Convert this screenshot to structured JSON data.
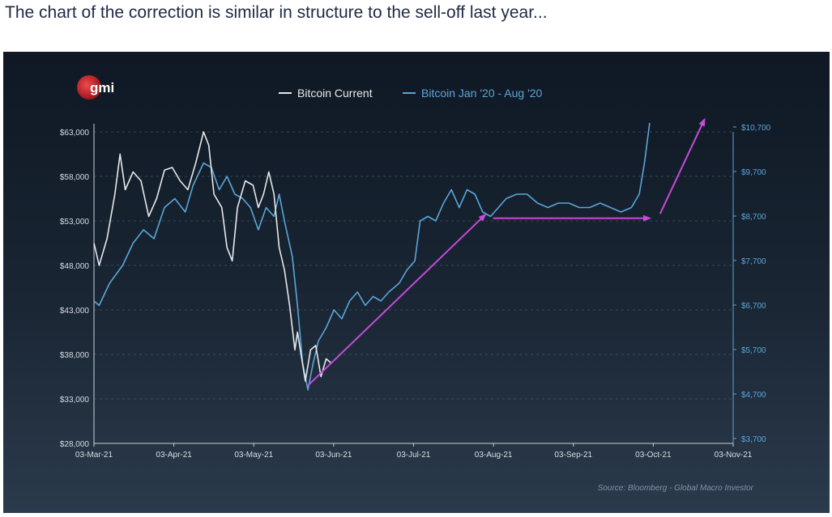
{
  "headline": "The chart of the correction is similar in structure to the sell-off last year...",
  "logo_text": "gmi",
  "source": "Source: Bloomberg - Global Macro Investor",
  "colors": {
    "panel_top": "#0f1824",
    "panel_bottom": "#2b3a4c",
    "current": "#e8e8e8",
    "last_year": "#5aa6d9",
    "arrows": "#c64bd9",
    "logo_red": "#c8252c",
    "axis_text": "#d8dde4"
  },
  "chart_data": {
    "type": "line",
    "title": "",
    "legend_position": "top-center",
    "grid": true,
    "x_axis": {
      "ticks": [
        "03-Mar-21",
        "03-Apr-21",
        "03-May-21",
        "03-Jun-21",
        "03-Jul-21",
        "03-Aug-21",
        "03-Sep-21",
        "03-Oct-21",
        "03-Nov-21"
      ],
      "range": [
        "2021-03-03",
        "2021-11-03"
      ]
    },
    "y_left": {
      "ticks": [
        "$28,000",
        "$33,000",
        "$38,000",
        "$43,000",
        "$48,000",
        "$53,000",
        "$58,000",
        "$63,000"
      ],
      "range": [
        28000,
        63000
      ]
    },
    "y_right": {
      "ticks": [
        "$3,700",
        "$4,700",
        "$5,700",
        "$6,700",
        "$7,700",
        "$8,700",
        "$9,700",
        "$10,700"
      ],
      "range": [
        3700,
        10700
      ]
    },
    "series": [
      {
        "name": "Bitcoin Current",
        "axis": "left",
        "points": [
          [
            "2021-03-03",
            50500
          ],
          [
            "2021-03-05",
            48000
          ],
          [
            "2021-03-08",
            51000
          ],
          [
            "2021-03-11",
            56000
          ],
          [
            "2021-03-13",
            60500
          ],
          [
            "2021-03-15",
            56500
          ],
          [
            "2021-03-18",
            58500
          ],
          [
            "2021-03-21",
            57500
          ],
          [
            "2021-03-24",
            53500
          ],
          [
            "2021-03-27",
            55500
          ],
          [
            "2021-03-30",
            58700
          ],
          [
            "2021-04-02",
            59000
          ],
          [
            "2021-04-05",
            57500
          ],
          [
            "2021-04-08",
            56500
          ],
          [
            "2021-04-11",
            59500
          ],
          [
            "2021-04-14",
            63000
          ],
          [
            "2021-04-16",
            61500
          ],
          [
            "2021-04-18",
            56000
          ],
          [
            "2021-04-21",
            54500
          ],
          [
            "2021-04-23",
            50000
          ],
          [
            "2021-04-25",
            48500
          ],
          [
            "2021-04-27",
            54500
          ],
          [
            "2021-04-30",
            57500
          ],
          [
            "2021-05-03",
            57000
          ],
          [
            "2021-05-05",
            54500
          ],
          [
            "2021-05-07",
            56000
          ],
          [
            "2021-05-09",
            58500
          ],
          [
            "2021-05-11",
            56000
          ],
          [
            "2021-05-13",
            50000
          ],
          [
            "2021-05-15",
            47500
          ],
          [
            "2021-05-17",
            43500
          ],
          [
            "2021-05-19",
            38500
          ],
          [
            "2021-05-20",
            40500
          ],
          [
            "2021-05-23",
            35000
          ],
          [
            "2021-05-25",
            38500
          ],
          [
            "2021-05-27",
            39000
          ],
          [
            "2021-05-29",
            35500
          ],
          [
            "2021-05-31",
            37500
          ],
          [
            "2021-06-02",
            37000
          ]
        ]
      },
      {
        "name": "Bitcoin Jan '20 - Aug '20",
        "axis": "right",
        "points": [
          [
            "2021-03-03",
            6900
          ],
          [
            "2021-03-05",
            6800
          ],
          [
            "2021-03-09",
            7300
          ],
          [
            "2021-03-14",
            7700
          ],
          [
            "2021-03-18",
            8200
          ],
          [
            "2021-03-22",
            8500
          ],
          [
            "2021-03-26",
            8300
          ],
          [
            "2021-03-30",
            9000
          ],
          [
            "2021-04-03",
            9200
          ],
          [
            "2021-04-07",
            8900
          ],
          [
            "2021-04-10",
            9500
          ],
          [
            "2021-04-14",
            10000
          ],
          [
            "2021-04-17",
            9900
          ],
          [
            "2021-04-20",
            9400
          ],
          [
            "2021-04-23",
            9700
          ],
          [
            "2021-04-26",
            9300
          ],
          [
            "2021-04-29",
            9200
          ],
          [
            "2021-05-02",
            9000
          ],
          [
            "2021-05-05",
            8500
          ],
          [
            "2021-05-08",
            9000
          ],
          [
            "2021-05-11",
            8800
          ],
          [
            "2021-05-13",
            9300
          ],
          [
            "2021-05-15",
            8700
          ],
          [
            "2021-05-18",
            7900
          ],
          [
            "2021-05-20",
            6800
          ],
          [
            "2021-05-22",
            5500
          ],
          [
            "2021-05-24",
            4900
          ],
          [
            "2021-05-26",
            5500
          ],
          [
            "2021-05-28",
            6000
          ],
          [
            "2021-05-31",
            6300
          ],
          [
            "2021-06-03",
            6700
          ],
          [
            "2021-06-06",
            6500
          ],
          [
            "2021-06-09",
            6900
          ],
          [
            "2021-06-12",
            7100
          ],
          [
            "2021-06-15",
            6800
          ],
          [
            "2021-06-18",
            7000
          ],
          [
            "2021-06-21",
            6900
          ],
          [
            "2021-06-24",
            7100
          ],
          [
            "2021-06-28",
            7300
          ],
          [
            "2021-07-01",
            7600
          ],
          [
            "2021-07-04",
            7800
          ],
          [
            "2021-07-06",
            8700
          ],
          [
            "2021-07-09",
            8800
          ],
          [
            "2021-07-12",
            8700
          ],
          [
            "2021-07-15",
            9100
          ],
          [
            "2021-07-18",
            9400
          ],
          [
            "2021-07-21",
            9000
          ],
          [
            "2021-07-24",
            9400
          ],
          [
            "2021-07-27",
            9300
          ],
          [
            "2021-07-30",
            8900
          ],
          [
            "2021-08-02",
            8800
          ],
          [
            "2021-08-05",
            9000
          ],
          [
            "2021-08-08",
            9200
          ],
          [
            "2021-08-12",
            9300
          ],
          [
            "2021-08-16",
            9300
          ],
          [
            "2021-08-20",
            9100
          ],
          [
            "2021-08-24",
            9000
          ],
          [
            "2021-08-28",
            9100
          ],
          [
            "2021-09-01",
            9100
          ],
          [
            "2021-09-05",
            9000
          ],
          [
            "2021-09-09",
            9000
          ],
          [
            "2021-09-13",
            9100
          ],
          [
            "2021-09-17",
            9000
          ],
          [
            "2021-09-21",
            8900
          ],
          [
            "2021-09-25",
            9000
          ],
          [
            "2021-09-28",
            9300
          ],
          [
            "2021-09-30",
            10000
          ],
          [
            "2021-10-02",
            10900
          ]
        ]
      }
    ],
    "annotations": [
      {
        "type": "arrow",
        "from": [
          "2021-05-24",
          34500
        ],
        "to": [
          "2021-07-31",
          53700
        ]
      },
      {
        "type": "arrow",
        "from": [
          "2021-08-03",
          53300
        ],
        "to": [
          "2021-10-02",
          53300
        ]
      },
      {
        "type": "arrow",
        "from": [
          "2021-10-06",
          53800
        ],
        "to": [
          "2021-10-23",
          64400
        ]
      }
    ]
  }
}
